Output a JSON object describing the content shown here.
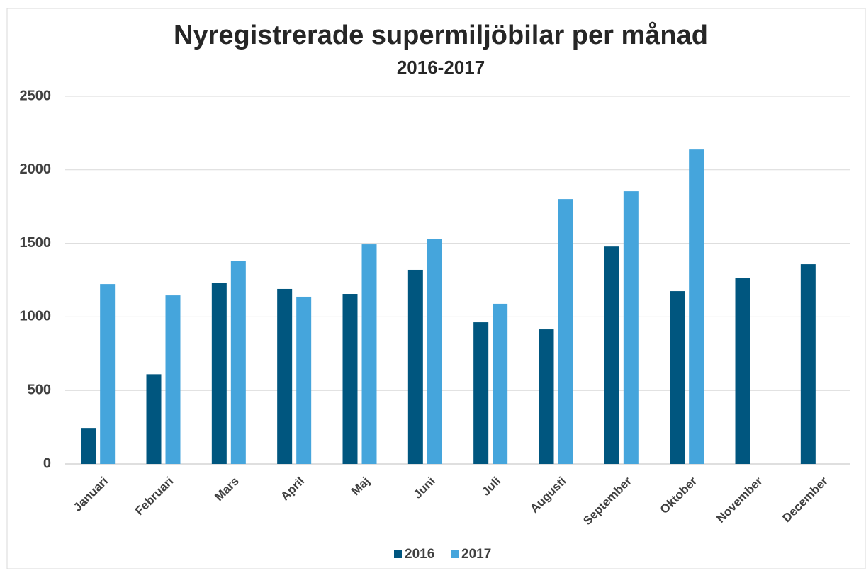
{
  "chart_data": {
    "type": "bar",
    "title": "Nyregistrerade supermiljöbilar per månad",
    "subtitle": "2016-2017",
    "categories": [
      "Januari",
      "Februari",
      "Mars",
      "April",
      "Maj",
      "Juni",
      "Juli",
      "Augusti",
      "September",
      "Oktober",
      "November",
      "December"
    ],
    "series": [
      {
        "name": "2016",
        "color": "#00567f",
        "values": [
          245,
          610,
          1233,
          1190,
          1156,
          1320,
          963,
          915,
          1478,
          1175,
          1262,
          1358
        ]
      },
      {
        "name": "2017",
        "color": "#45a5dc",
        "values": [
          1223,
          1146,
          1382,
          1137,
          1493,
          1527,
          1089,
          1801,
          1854,
          2138,
          null,
          null
        ]
      }
    ],
    "ylim": [
      0,
      2500
    ],
    "yticks": [
      0,
      500,
      1000,
      1500,
      2000,
      2500
    ],
    "grid": true,
    "legend": "bottom"
  }
}
